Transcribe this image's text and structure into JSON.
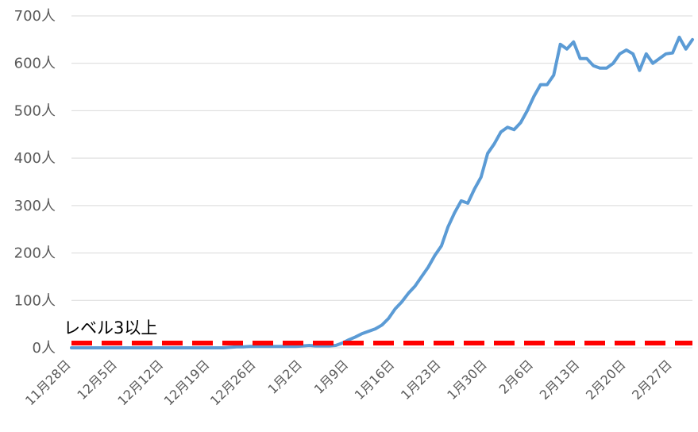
{
  "chart_data": {
    "type": "line",
    "title": "",
    "xlabel": "",
    "ylabel": "",
    "y_unit": "人",
    "ylim": [
      0,
      700
    ],
    "yticks": [
      0,
      100,
      200,
      300,
      400,
      500,
      600,
      700
    ],
    "ytick_labels": [
      "0人",
      "100人",
      "200人",
      "300人",
      "400人",
      "500人",
      "600人",
      "700人"
    ],
    "grid": true,
    "x_tick_labels": [
      "11月28日",
      "12月5日",
      "12月12日",
      "12月19日",
      "12月26日",
      "1月2日",
      "1月9日",
      "1月16日",
      "1月23日",
      "1月30日",
      "2月6日",
      "2月13日",
      "2月20日",
      "2月27日"
    ],
    "x_tick_interval_days": 7,
    "series": [
      {
        "color": "#5b9bd5",
        "values": [
          0,
          0,
          0,
          0,
          0,
          0,
          0,
          0,
          0,
          0,
          0,
          0,
          0,
          0,
          0,
          0,
          0,
          0,
          0,
          0,
          0,
          0,
          0,
          0,
          1,
          2,
          2,
          3,
          3,
          3,
          3,
          3,
          3,
          3,
          3,
          4,
          5,
          4,
          4,
          4,
          5,
          10,
          17,
          23,
          30,
          35,
          40,
          48,
          62,
          82,
          97,
          115,
          130,
          150,
          170,
          195,
          215,
          255,
          285,
          310,
          305,
          335,
          360,
          410,
          430,
          455,
          465,
          460,
          475,
          500,
          530,
          555,
          555,
          575,
          640,
          630,
          645,
          610,
          610,
          595,
          590,
          590,
          600,
          620,
          628,
          620,
          585,
          620,
          600,
          610,
          620,
          622,
          655,
          630,
          650
        ]
      }
    ],
    "reference_line": {
      "value": 10,
      "label": "レベル3以上",
      "color": "#ff0000",
      "style": "dashed"
    }
  }
}
